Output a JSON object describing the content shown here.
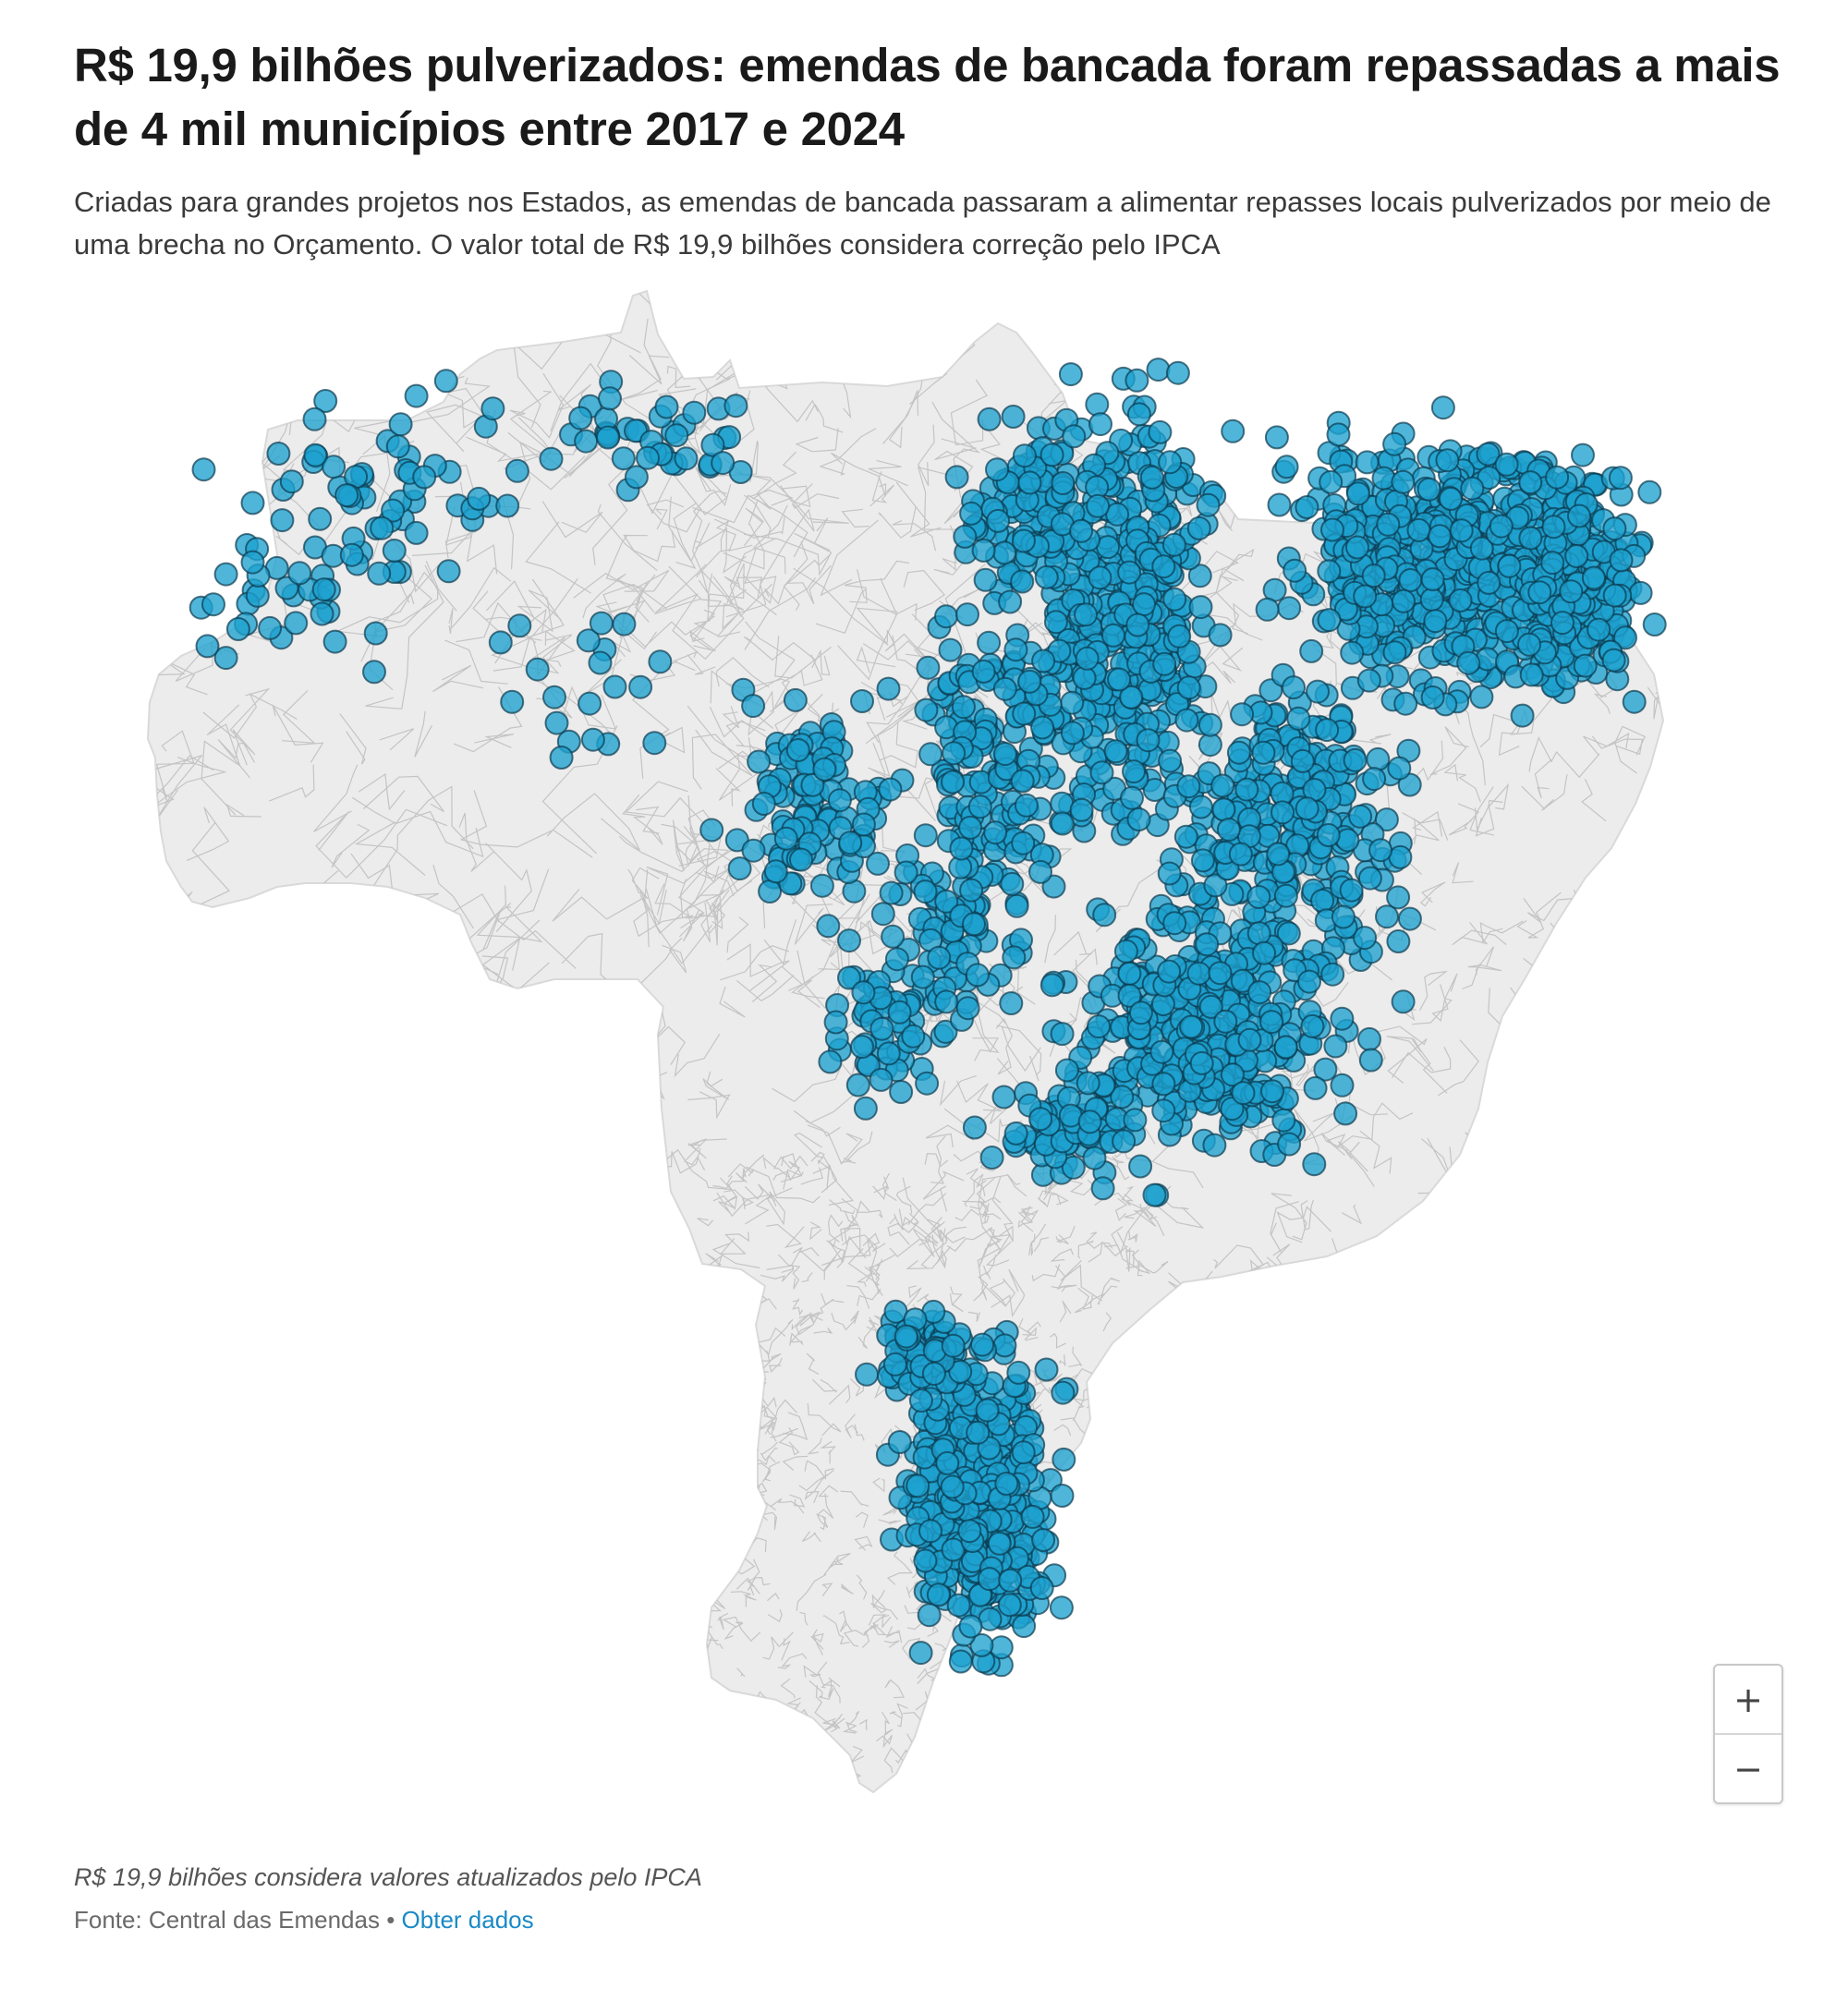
{
  "header": {
    "title": "R$ 19,9 bilhões pulverizados: emendas de bancada foram repassadas a mais de 4 mil municípios entre 2017 e 2024",
    "subtitle": "Criadas para grandes projetos nos Estados, as emendas de bancada passaram a alimentar repasses locais pulverizados por meio de uma brecha no Orçamento. O valor total de R$ 19,9 bilhões considera correção pelo IPCA"
  },
  "map": {
    "land_color": "#ececec",
    "border_color": "#c4c4c4",
    "marker_color": "#1ea1cf",
    "marker_stroke": "#0c3a4e"
  },
  "zoom": {
    "zoom_in_label": "+",
    "zoom_out_label": "−"
  },
  "footer": {
    "note": "R$ 19,9 bilhões considera valores atualizados pelo IPCA",
    "source_prefix": "Fonte: Central das Emendas",
    "separator": " • ",
    "link_label": "Obter dados"
  }
}
